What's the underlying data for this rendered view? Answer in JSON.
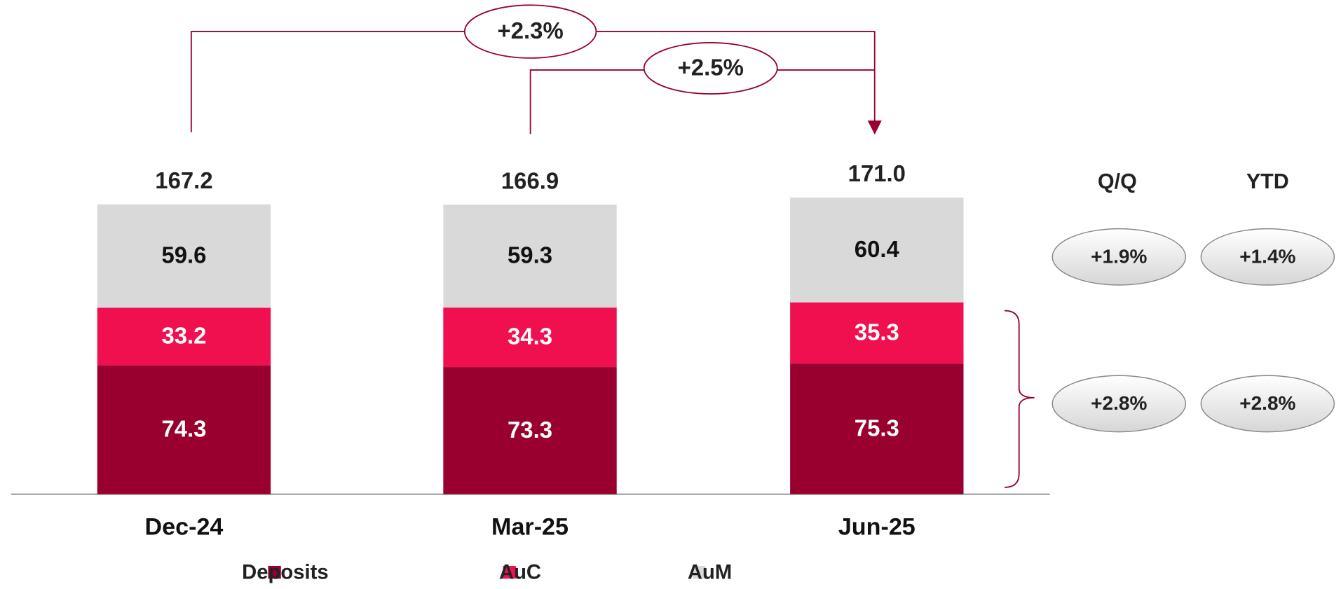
{
  "chart_data": {
    "type": "stacked_bar",
    "categories": [
      "Dec-24",
      "Mar-25",
      "Jun-25"
    ],
    "series": [
      {
        "name": "Deposits",
        "color": "#990030",
        "values": [
          74.3,
          73.3,
          75.3
        ]
      },
      {
        "name": "AuC",
        "color": "#f0104f",
        "values": [
          33.2,
          34.3,
          35.3
        ]
      },
      {
        "name": "AuM",
        "color": "#d9d9d9",
        "values": [
          59.6,
          59.3,
          60.4
        ]
      }
    ],
    "totals": [
      167.2,
      166.9,
      171.0
    ],
    "totals_labels": [
      "167.2",
      "166.9",
      "171.0"
    ],
    "growth_callouts": [
      "+2.3%",
      "+2.5%"
    ],
    "side_table": {
      "headers": [
        "Q/Q",
        "YTD"
      ],
      "rows": [
        [
          "+1.9%",
          "+1.4%"
        ],
        [
          "+2.8%",
          "+2.8%"
        ]
      ]
    },
    "legend": "bottom"
  }
}
